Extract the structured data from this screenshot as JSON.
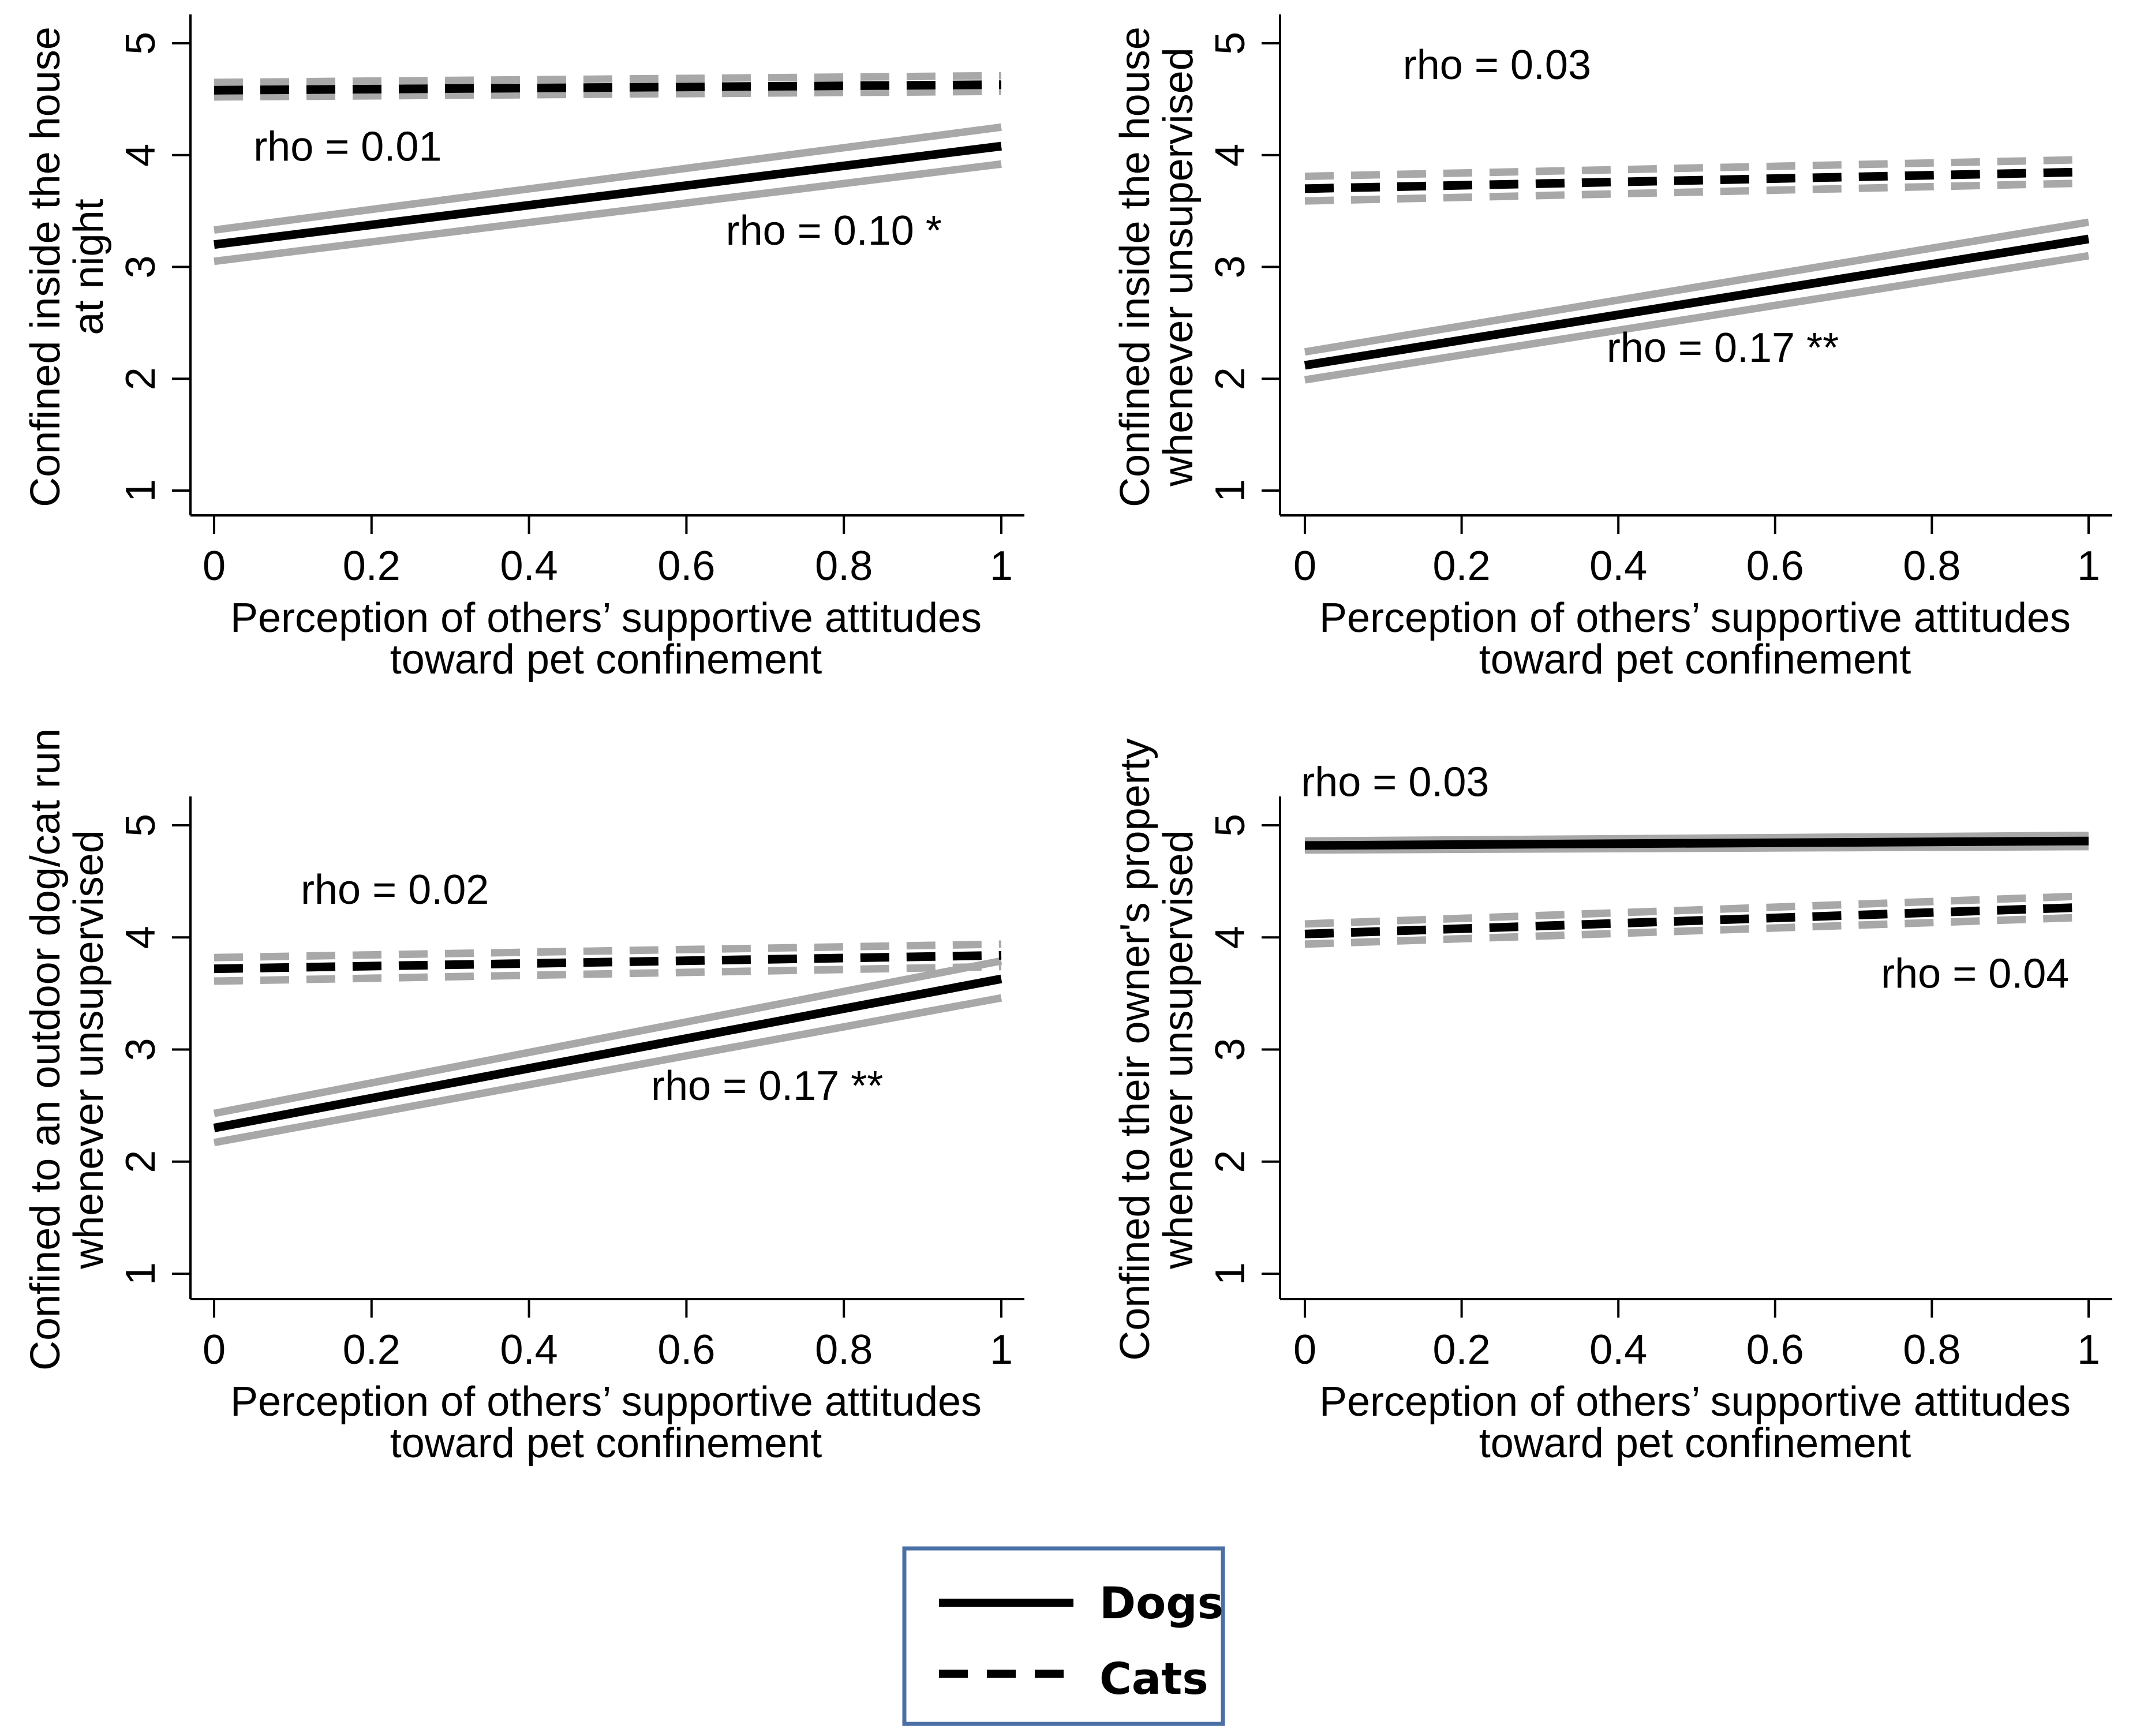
{
  "x_axis": {
    "label_line1": "Perception of others’ supportive attitudes",
    "label_line2": "toward pet confinement",
    "ticks": [
      "0",
      "0.2",
      "0.4",
      "0.6",
      "0.8",
      "1"
    ],
    "tick_values": [
      0,
      0.2,
      0.4,
      0.6,
      0.8,
      1
    ],
    "range": [
      0,
      1
    ]
  },
  "y_axis": {
    "ticks": [
      "1",
      "2",
      "3",
      "4",
      "5"
    ],
    "tick_values": [
      1,
      2,
      3,
      4,
      5
    ],
    "range": [
      1,
      5
    ]
  },
  "legend": {
    "dogs": "Dogs",
    "cats": "Cats"
  },
  "colors": {
    "line": "#000000",
    "ci": "#a8a8a8",
    "legend_border": "#4a6fa5"
  },
  "chart_data": [
    {
      "type": "line",
      "ylabel_line1": "Confined inside the house",
      "ylabel_line2": "at night",
      "xlim": [
        0,
        1
      ],
      "ylim": [
        1,
        5
      ],
      "series": [
        {
          "name": "Dogs",
          "style": "solid",
          "x": [
            0,
            1
          ],
          "y": [
            3.2,
            4.08
          ],
          "ci_lower": [
            3.05,
            3.92
          ],
          "ci_upper": [
            3.33,
            4.25
          ]
        },
        {
          "name": "Cats",
          "style": "dashed",
          "x": [
            0,
            1
          ],
          "y": [
            4.58,
            4.63
          ],
          "ci_lower": [
            4.52,
            4.57
          ],
          "ci_upper": [
            4.65,
            4.71
          ]
        }
      ],
      "annotations": [
        {
          "text": "rho = 0.01",
          "x": 0.05,
          "y": 3.95
        },
        {
          "text": "rho = 0.10 *",
          "x": 0.65,
          "y": 3.2
        }
      ]
    },
    {
      "type": "line",
      "ylabel_line1": "Confined inside the house",
      "ylabel_line2": "whenever unsupervised",
      "xlim": [
        0,
        1
      ],
      "ylim": [
        1,
        5
      ],
      "series": [
        {
          "name": "Dogs",
          "style": "solid",
          "x": [
            0,
            1
          ],
          "y": [
            2.12,
            3.25
          ],
          "ci_lower": [
            1.99,
            3.1
          ],
          "ci_upper": [
            2.24,
            3.4
          ]
        },
        {
          "name": "Cats",
          "style": "dashed",
          "x": [
            0,
            1
          ],
          "y": [
            3.7,
            3.85
          ],
          "ci_lower": [
            3.59,
            3.75
          ],
          "ci_upper": [
            3.81,
            3.96
          ]
        }
      ],
      "annotations": [
        {
          "text": "rho = 0.03",
          "x": 0.125,
          "y": 4.68
        },
        {
          "text": "rho = 0.17 **",
          "x": 0.385,
          "y": 2.15
        }
      ]
    },
    {
      "type": "line",
      "ylabel_line1": "Confined to an outdoor dog/cat run",
      "ylabel_line2": "whenever unsupervised",
      "xlim": [
        0,
        1
      ],
      "ylim": [
        1,
        5
      ],
      "series": [
        {
          "name": "Dogs",
          "style": "solid",
          "x": [
            0,
            1
          ],
          "y": [
            2.3,
            3.63
          ],
          "ci_lower": [
            2.17,
            3.46
          ],
          "ci_upper": [
            2.43,
            3.79
          ]
        },
        {
          "name": "Cats",
          "style": "dashed",
          "x": [
            0,
            1
          ],
          "y": [
            3.72,
            3.84
          ],
          "ci_lower": [
            3.61,
            3.74
          ],
          "ci_upper": [
            3.82,
            3.94
          ]
        }
      ],
      "annotations": [
        {
          "text": "rho = 0.02",
          "x": 0.11,
          "y": 4.3
        },
        {
          "text": "rho = 0.17 **",
          "x": 0.555,
          "y": 2.55
        }
      ]
    },
    {
      "type": "line",
      "ylabel_line1": "Confined to their owner's property",
      "ylabel_line2": "whenever unsupervised",
      "xlim": [
        0,
        1
      ],
      "ylim": [
        1,
        5
      ],
      "series": [
        {
          "name": "Dogs",
          "style": "solid",
          "x": [
            0,
            1
          ],
          "y": [
            4.82,
            4.86
          ],
          "ci_lower": [
            4.78,
            4.81
          ],
          "ci_upper": [
            4.86,
            4.91
          ]
        },
        {
          "name": "Cats",
          "style": "dashed",
          "x": [
            0,
            1
          ],
          "y": [
            4.03,
            4.27
          ],
          "ci_lower": [
            3.94,
            4.18
          ],
          "ci_upper": [
            4.12,
            4.37
          ]
        }
      ],
      "annotations": [
        {
          "text": "rho = 0.03",
          "x": -0.005,
          "y": 5.26
        },
        {
          "text": "rho = 0.04",
          "x": 0.735,
          "y": 3.55
        }
      ]
    }
  ]
}
